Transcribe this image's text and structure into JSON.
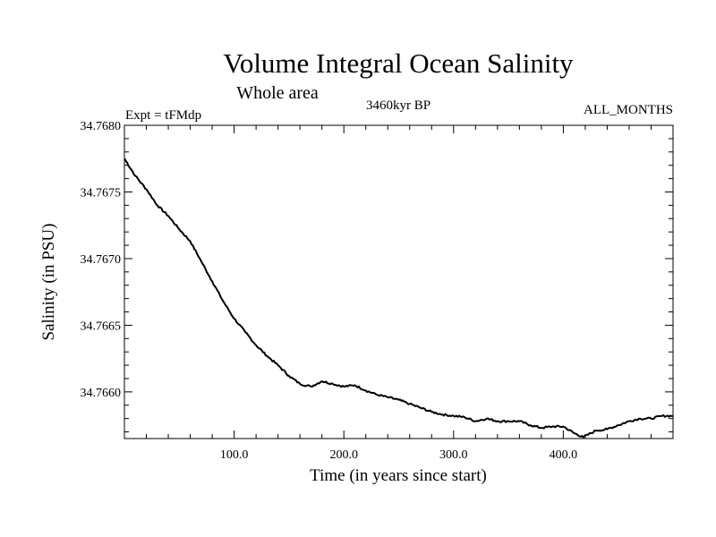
{
  "chart_data": {
    "type": "line",
    "title": "Volume Integral Ocean Salinity",
    "subtitle": "Whole area",
    "left_string": "Expt = tFMdp",
    "center_string": "3460kyr BP",
    "right_string": "ALL_MONTHS",
    "xlabel": "Time (in years since start)",
    "ylabel": "Salinity (in PSU)",
    "xlim": [
      0,
      500
    ],
    "ylim": [
      34.76565,
      34.768
    ],
    "x_ticks": [
      100,
      200,
      300,
      400
    ],
    "x_tick_labels": [
      "100.0",
      "200.0",
      "300.0",
      "400.0"
    ],
    "y_ticks": [
      34.766,
      34.7665,
      34.767,
      34.7675,
      34.768
    ],
    "y_tick_labels": [
      "34.7660",
      "34.7665",
      "34.7670",
      "34.7675",
      "34.7680"
    ],
    "grid": false,
    "line_color": "#000000",
    "series": [
      {
        "name": "salinity",
        "x": [
          0,
          10,
          20,
          30,
          40,
          50,
          60,
          70,
          80,
          90,
          100,
          110,
          120,
          130,
          140,
          150,
          160,
          170,
          180,
          190,
          200,
          210,
          220,
          230,
          240,
          250,
          260,
          270,
          280,
          290,
          300,
          310,
          320,
          330,
          340,
          350,
          360,
          370,
          380,
          390,
          400,
          410,
          418,
          430,
          440,
          450,
          460,
          470,
          480,
          490,
          500
        ],
        "values": [
          34.76775,
          34.76762,
          34.76752,
          34.7674,
          34.76732,
          34.76722,
          34.76713,
          34.76698,
          34.76683,
          34.76668,
          34.76655,
          34.76645,
          34.76635,
          34.76627,
          34.7662,
          34.76612,
          34.76606,
          34.76604,
          34.76608,
          34.76606,
          34.76604,
          34.76605,
          34.76601,
          34.76598,
          34.76596,
          34.76594,
          34.76591,
          34.76588,
          34.76585,
          34.76583,
          34.76582,
          34.76581,
          34.76578,
          34.7658,
          34.76578,
          34.76578,
          34.76578,
          34.76575,
          34.76573,
          34.76574,
          34.76574,
          34.76569,
          34.76566,
          34.76571,
          34.76572,
          34.76575,
          34.76578,
          34.7658,
          34.7658,
          34.76582,
          34.76582
        ]
      }
    ]
  }
}
